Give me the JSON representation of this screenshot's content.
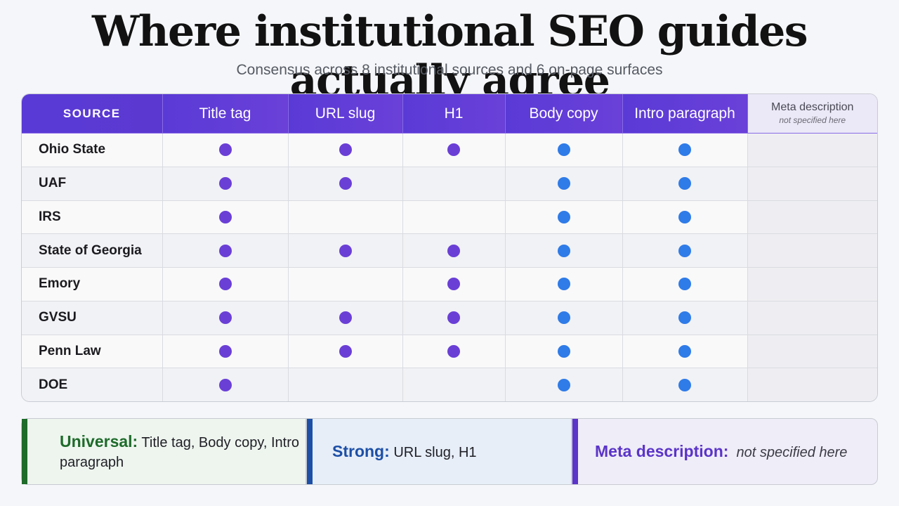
{
  "title": "Where institutional SEO guides actually agree",
  "subtitle": "Consensus across 8 institutional sources and 6 on-page surfaces",
  "colors": {
    "purple_dot": "#6a3fd6",
    "blue_dot": "#2f7be8",
    "universal": "#1e6b2a",
    "strong": "#1d4fa6",
    "meta": "#5b34c9"
  },
  "chart_data": {
    "type": "table",
    "columns": [
      "SOURCE",
      "Title tag",
      "URL slug",
      "H1",
      "Body copy",
      "Intro paragraph",
      "Meta description"
    ],
    "meta_note": "not specified here",
    "dot_colors": [
      "purple",
      "purple",
      "purple",
      "blue",
      "blue",
      ""
    ],
    "rows": [
      {
        "source": "Ohio State",
        "marks": [
          1,
          1,
          1,
          1,
          1,
          0
        ]
      },
      {
        "source": "UAF",
        "marks": [
          1,
          1,
          0,
          1,
          1,
          0
        ]
      },
      {
        "source": "IRS",
        "marks": [
          1,
          0,
          0,
          1,
          1,
          0
        ]
      },
      {
        "source": "State of Georgia",
        "marks": [
          1,
          1,
          1,
          1,
          1,
          0
        ]
      },
      {
        "source": "Emory",
        "marks": [
          1,
          0,
          1,
          1,
          1,
          0
        ]
      },
      {
        "source": "GVSU",
        "marks": [
          1,
          1,
          1,
          1,
          1,
          0
        ]
      },
      {
        "source": "Penn Law",
        "marks": [
          1,
          1,
          1,
          1,
          1,
          0
        ]
      },
      {
        "source": "DOE",
        "marks": [
          1,
          0,
          0,
          1,
          1,
          0
        ]
      }
    ]
  },
  "callouts": {
    "universal": {
      "key": "Universal:",
      "value": "Title tag, Body copy, Intro paragraph"
    },
    "strong": {
      "key": "Strong:",
      "value": "URL slug, H1"
    },
    "meta": {
      "key": "Meta description:",
      "value": "not specified here"
    }
  }
}
